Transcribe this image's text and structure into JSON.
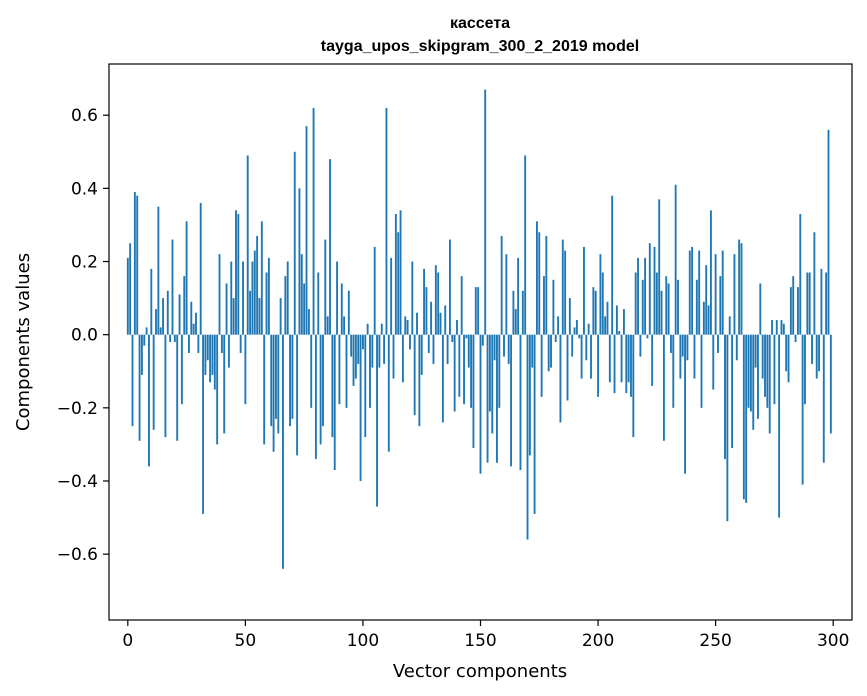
{
  "chart_data": {
    "type": "bar",
    "title": "кассета",
    "subtitle": "tayga_upos_skipgram_300_2_2019 model",
    "xlabel": "Vector components",
    "ylabel": "Components values",
    "xlim": [
      -8,
      308
    ],
    "ylim": [
      -0.78,
      0.74
    ],
    "xticks": [
      0,
      50,
      100,
      150,
      200,
      250,
      300
    ],
    "yticks": [
      -0.6,
      -0.4,
      -0.2,
      0.0,
      0.2,
      0.4,
      0.6
    ],
    "ytick_labels": [
      "−0.6",
      "−0.4",
      "−0.2",
      "0.0",
      "0.2",
      "0.4",
      "0.6"
    ],
    "xtick_labels": [
      "0",
      "50",
      "100",
      "150",
      "200",
      "250",
      "300"
    ],
    "bar_color": "#1f77b4",
    "grid": false,
    "x": [
      0,
      1,
      2,
      3,
      4,
      5,
      6,
      7,
      8,
      9,
      10,
      11,
      12,
      13,
      14,
      15,
      16,
      17,
      18,
      19,
      20,
      21,
      22,
      23,
      24,
      25,
      26,
      27,
      28,
      29,
      30,
      31,
      32,
      33,
      34,
      35,
      36,
      37,
      38,
      39,
      40,
      41,
      42,
      43,
      44,
      45,
      46,
      47,
      48,
      49,
      50,
      51,
      52,
      53,
      54,
      55,
      56,
      57,
      58,
      59,
      60,
      61,
      62,
      63,
      64,
      65,
      66,
      67,
      68,
      69,
      70,
      71,
      72,
      73,
      74,
      75,
      76,
      77,
      78,
      79,
      80,
      81,
      82,
      83,
      84,
      85,
      86,
      87,
      88,
      89,
      90,
      91,
      92,
      93,
      94,
      95,
      96,
      97,
      98,
      99,
      100,
      101,
      102,
      103,
      104,
      105,
      106,
      107,
      108,
      109,
      110,
      111,
      112,
      113,
      114,
      115,
      116,
      117,
      118,
      119,
      120,
      121,
      122,
      123,
      124,
      125,
      126,
      127,
      128,
      129,
      130,
      131,
      132,
      133,
      134,
      135,
      136,
      137,
      138,
      139,
      140,
      141,
      142,
      143,
      144,
      145,
      146,
      147,
      148,
      149,
      150,
      151,
      152,
      153,
      154,
      155,
      156,
      157,
      158,
      159,
      160,
      161,
      162,
      163,
      164,
      165,
      166,
      167,
      168,
      169,
      170,
      171,
      172,
      173,
      174,
      175,
      176,
      177,
      178,
      179,
      180,
      181,
      182,
      183,
      184,
      185,
      186,
      187,
      188,
      189,
      190,
      191,
      192,
      193,
      194,
      195,
      196,
      197,
      198,
      199,
      200,
      201,
      202,
      203,
      204,
      205,
      206,
      207,
      208,
      209,
      210,
      211,
      212,
      213,
      214,
      215,
      216,
      217,
      218,
      219,
      220,
      221,
      222,
      223,
      224,
      225,
      226,
      227,
      228,
      229,
      230,
      231,
      232,
      233,
      234,
      235,
      236,
      237,
      238,
      239,
      240,
      241,
      242,
      243,
      244,
      245,
      246,
      247,
      248,
      249,
      250,
      251,
      252,
      253,
      254,
      255,
      256,
      257,
      258,
      259,
      260,
      261,
      262,
      263,
      264,
      265,
      266,
      267,
      268,
      269,
      270,
      271,
      272,
      273,
      274,
      275,
      276,
      277,
      278,
      279,
      280,
      281,
      282,
      283,
      284,
      285,
      286,
      287,
      288,
      289,
      290,
      291,
      292,
      293,
      294,
      295,
      296,
      297,
      298,
      299
    ],
    "values": [
      0.21,
      0.25,
      -0.25,
      0.39,
      0.38,
      -0.29,
      -0.11,
      -0.03,
      0.02,
      -0.36,
      0.18,
      -0.26,
      0.07,
      0.35,
      0.02,
      0.1,
      -0.28,
      0.12,
      -0.02,
      0.26,
      -0.02,
      -0.29,
      0.11,
      -0.19,
      0.16,
      0.31,
      -0.05,
      0.09,
      0.03,
      0.06,
      -0.05,
      0.36,
      -0.49,
      -0.11,
      -0.07,
      -0.13,
      -0.11,
      -0.15,
      -0.3,
      0.22,
      -0.05,
      -0.27,
      0.14,
      -0.09,
      0.2,
      0.1,
      0.34,
      0.33,
      -0.05,
      0.2,
      -0.19,
      0.49,
      0.12,
      0.2,
      0.23,
      0.27,
      0.1,
      0.31,
      -0.3,
      0.17,
      0.21,
      -0.25,
      -0.32,
      -0.23,
      -0.27,
      0.1,
      -0.64,
      0.16,
      0.2,
      -0.25,
      -0.23,
      0.5,
      -0.33,
      0.4,
      0.22,
      0.14,
      0.57,
      0.07,
      -0.2,
      0.62,
      -0.34,
      0.17,
      -0.3,
      -0.25,
      0.26,
      0.05,
      0.48,
      -0.28,
      -0.37,
      0.2,
      -0.19,
      0.14,
      0.05,
      -0.2,
      0.12,
      -0.06,
      -0.14,
      -0.12,
      -0.08,
      -0.4,
      -0.04,
      -0.28,
      0.03,
      -0.2,
      -0.09,
      0.24,
      -0.47,
      -0.09,
      0.03,
      -0.08,
      0.62,
      -0.32,
      0.21,
      -0.12,
      0.33,
      0.28,
      0.34,
      -0.13,
      0.05,
      0.04,
      -0.04,
      0.2,
      -0.22,
      0.06,
      -0.25,
      -0.11,
      0.18,
      0.13,
      -0.05,
      0.09,
      -0.08,
      0.19,
      0.17,
      0.06,
      -0.24,
      0.08,
      -0.08,
      0.26,
      -0.02,
      -0.21,
      0.04,
      -0.17,
      0.16,
      -0.19,
      -0.01,
      -0.09,
      -0.2,
      -0.31,
      0.13,
      0.13,
      -0.38,
      -0.03,
      0.67,
      -0.35,
      -0.21,
      -0.27,
      -0.07,
      -0.35,
      -0.2,
      0.27,
      -0.06,
      0.22,
      -0.08,
      -0.36,
      0.12,
      0.07,
      0.21,
      -0.37,
      0.12,
      0.49,
      -0.56,
      -0.33,
      -0.09,
      -0.49,
      0.31,
      0.28,
      -0.17,
      0.16,
      0.27,
      -0.1,
      -0.09,
      0.15,
      -0.02,
      0.05,
      -0.24,
      0.26,
      0.23,
      -0.18,
      0.1,
      -0.06,
      0.02,
      0.04,
      -0.01,
      -0.12,
      0.24,
      -0.07,
      0.03,
      -0.12,
      0.13,
      0.12,
      -0.17,
      0.22,
      0.17,
      0.05,
      0.09,
      -0.13,
      0.38,
      -0.16,
      0.08,
      0.01,
      -0.13,
      0.07,
      -0.16,
      -0.13,
      -0.17,
      -0.28,
      0.17,
      0.21,
      -0.06,
      0.15,
      0.21,
      -0.01,
      0.25,
      -0.14,
      0.24,
      0.17,
      0.37,
      0.12,
      -0.29,
      0.16,
      0.14,
      -0.05,
      -0.2,
      0.41,
      0.15,
      -0.12,
      -0.06,
      -0.38,
      -0.07,
      0.23,
      0.24,
      -0.12,
      0.15,
      0.23,
      -0.2,
      0.09,
      0.19,
      0.08,
      0.34,
      -0.15,
      0.22,
      -0.05,
      0.16,
      0.23,
      -0.34,
      -0.51,
      0.05,
      -0.31,
      0.22,
      -0.07,
      0.26,
      0.25,
      -0.45,
      -0.46,
      -0.2,
      -0.21,
      -0.26,
      -0.09,
      -0.23,
      0.14,
      -0.12,
      -0.17,
      -0.2,
      -0.27,
      0.04,
      -0.19,
      0.04,
      -0.5,
      0.04,
      0.03,
      -0.1,
      -0.13,
      0.13,
      0.16,
      -0.02,
      0.13,
      0.33,
      -0.41,
      -0.19,
      0.17,
      0.17,
      -0.08,
      0.28,
      -0.12,
      -0.1,
      0.18,
      -0.35,
      0.17,
      0.56,
      -0.27
    ]
  }
}
